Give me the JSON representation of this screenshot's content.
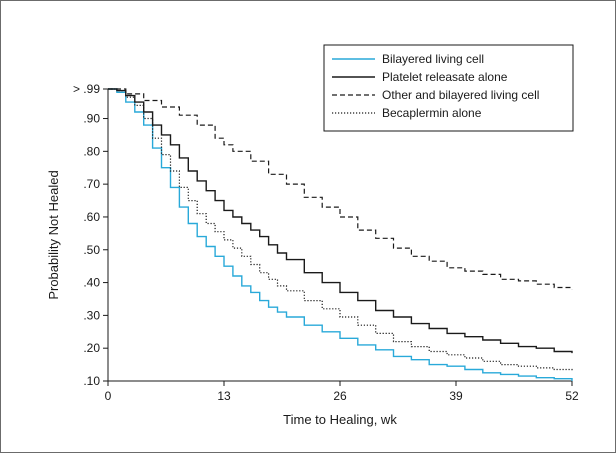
{
  "chart_data": {
    "type": "line",
    "title": "",
    "xlabel": "Time to Healing, wk",
    "ylabel": "Probability Not Healed",
    "xlim": [
      0,
      52
    ],
    "ylim": [
      0.1,
      0.99
    ],
    "x_ticks": [
      0,
      13,
      26,
      39,
      52
    ],
    "x_tick_labels": [
      "0",
      "13",
      "26",
      "39",
      "52"
    ],
    "y_ticks": [
      0.1,
      0.2,
      0.3,
      0.4,
      0.5,
      0.6,
      0.7,
      0.8,
      0.9,
      0.99
    ],
    "y_tick_labels": [
      ".10",
      ".20",
      ".30",
      ".40",
      ".50",
      ".60",
      ".70",
      ".80",
      ".90",
      "> .99"
    ],
    "grid": false,
    "legend_position": "top-right",
    "series": [
      {
        "name": "Bilayered living cell",
        "color": "#29a9d9",
        "dash": "solid",
        "x": [
          0,
          1,
          2,
          3,
          4,
          5,
          6,
          7,
          8,
          9,
          10,
          11,
          12,
          13,
          14,
          15,
          16,
          17,
          18,
          19,
          20,
          22,
          24,
          26,
          28,
          30,
          32,
          34,
          36,
          38,
          40,
          42,
          44,
          46,
          48,
          50,
          52
        ],
        "y": [
          0.99,
          0.98,
          0.95,
          0.92,
          0.88,
          0.81,
          0.75,
          0.69,
          0.63,
          0.58,
          0.54,
          0.51,
          0.48,
          0.45,
          0.42,
          0.39,
          0.37,
          0.345,
          0.325,
          0.31,
          0.295,
          0.27,
          0.25,
          0.23,
          0.21,
          0.195,
          0.175,
          0.165,
          0.15,
          0.145,
          0.135,
          0.125,
          0.12,
          0.115,
          0.11,
          0.107,
          0.1
        ]
      },
      {
        "name": "Platelet releasate alone",
        "color": "#1a1a1a",
        "dash": "solid",
        "x": [
          0,
          1,
          2,
          3,
          4,
          5,
          6,
          7,
          8,
          9,
          10,
          11,
          12,
          13,
          14,
          15,
          16,
          17,
          18,
          19,
          20,
          22,
          24,
          26,
          28,
          30,
          32,
          34,
          36,
          38,
          40,
          42,
          44,
          46,
          48,
          50,
          52
        ],
        "y": [
          0.99,
          0.985,
          0.97,
          0.95,
          0.92,
          0.88,
          0.85,
          0.82,
          0.78,
          0.74,
          0.71,
          0.68,
          0.65,
          0.62,
          0.6,
          0.58,
          0.56,
          0.54,
          0.515,
          0.49,
          0.47,
          0.43,
          0.4,
          0.37,
          0.345,
          0.315,
          0.295,
          0.275,
          0.26,
          0.245,
          0.235,
          0.225,
          0.215,
          0.205,
          0.2,
          0.19,
          0.185
        ]
      },
      {
        "name": "Other and bilayered living cell",
        "color": "#1a1a1a",
        "dash": "dashed",
        "x": [
          0,
          2,
          4,
          6,
          8,
          10,
          12,
          13,
          14,
          16,
          18,
          20,
          22,
          24,
          26,
          28,
          30,
          32,
          34,
          36,
          38,
          40,
          42,
          44,
          46,
          48,
          50,
          52
        ],
        "y": [
          0.99,
          0.975,
          0.955,
          0.935,
          0.91,
          0.88,
          0.84,
          0.82,
          0.8,
          0.77,
          0.73,
          0.7,
          0.66,
          0.63,
          0.6,
          0.56,
          0.535,
          0.505,
          0.48,
          0.465,
          0.445,
          0.435,
          0.425,
          0.41,
          0.405,
          0.395,
          0.385,
          0.38
        ]
      },
      {
        "name": "Becaplermin alone",
        "color": "#1a1a1a",
        "dash": "dotted",
        "x": [
          0,
          1,
          2,
          3,
          4,
          5,
          6,
          7,
          8,
          9,
          10,
          11,
          12,
          13,
          14,
          15,
          16,
          17,
          18,
          19,
          20,
          22,
          24,
          26,
          28,
          30,
          32,
          34,
          36,
          38,
          40,
          42,
          44,
          46,
          48,
          50,
          52
        ],
        "y": [
          0.99,
          0.985,
          0.965,
          0.94,
          0.9,
          0.84,
          0.79,
          0.74,
          0.69,
          0.65,
          0.61,
          0.58,
          0.555,
          0.53,
          0.505,
          0.48,
          0.455,
          0.43,
          0.41,
          0.39,
          0.375,
          0.345,
          0.32,
          0.295,
          0.27,
          0.245,
          0.22,
          0.205,
          0.19,
          0.18,
          0.17,
          0.16,
          0.15,
          0.145,
          0.14,
          0.135,
          0.13
        ]
      }
    ]
  }
}
